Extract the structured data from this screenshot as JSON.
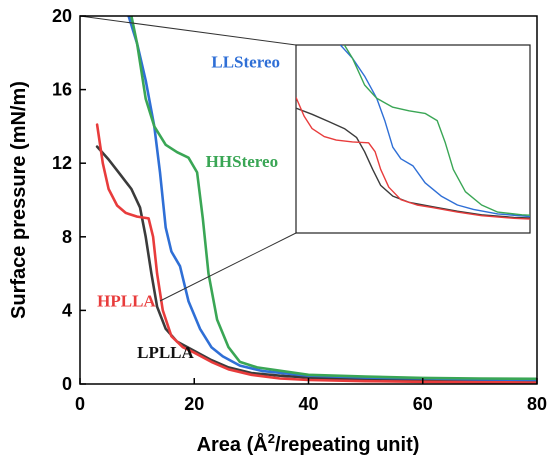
{
  "chart_data": {
    "type": "line",
    "title": "",
    "xlabel": "Area (Å²/repeating unit)",
    "xlabel_parts": {
      "prefix": "Area (Å",
      "sup": "2",
      "suffix": "/repeating unit)"
    },
    "ylabel": "Surface pressure (mN/m)",
    "xlim": [
      0,
      80
    ],
    "ylim": [
      0,
      20
    ],
    "x_ticks": [
      0,
      20,
      40,
      60,
      80
    ],
    "y_ticks": [
      0,
      4,
      8,
      12,
      16,
      20
    ],
    "grid": false,
    "series": [
      {
        "name": "LPLLA",
        "color": "#3b3b3b",
        "points": [
          [
            3,
            12.9
          ],
          [
            5,
            12.2
          ],
          [
            7,
            11.4
          ],
          [
            9,
            10.6
          ],
          [
            10.5,
            9.6
          ],
          [
            11.5,
            8.0
          ],
          [
            12.5,
            6.0
          ],
          [
            13.5,
            4.2
          ],
          [
            15,
            3.0
          ],
          [
            17,
            2.3
          ],
          [
            20,
            1.8
          ],
          [
            23,
            1.3
          ],
          [
            26,
            0.9
          ],
          [
            30,
            0.6
          ],
          [
            35,
            0.45
          ],
          [
            40,
            0.35
          ],
          [
            50,
            0.25
          ],
          [
            60,
            0.2
          ],
          [
            70,
            0.15
          ],
          [
            80,
            0.12
          ]
        ]
      },
      {
        "name": "HPLLA",
        "color": "#e83c3c",
        "points": [
          [
            3,
            14.1
          ],
          [
            4,
            12.0
          ],
          [
            5,
            10.6
          ],
          [
            6.5,
            9.7
          ],
          [
            8,
            9.3
          ],
          [
            10,
            9.1
          ],
          [
            12,
            9.0
          ],
          [
            12.8,
            8.0
          ],
          [
            13.5,
            6.0
          ],
          [
            14.5,
            4.0
          ],
          [
            16,
            2.6
          ],
          [
            18,
            2.0
          ],
          [
            20,
            1.7
          ],
          [
            23,
            1.2
          ],
          [
            26,
            0.8
          ],
          [
            30,
            0.5
          ],
          [
            35,
            0.3
          ],
          [
            40,
            0.22
          ],
          [
            50,
            0.15
          ],
          [
            60,
            0.12
          ],
          [
            70,
            0.1
          ],
          [
            80,
            0.08
          ]
        ]
      },
      {
        "name": "LLStereo",
        "color": "#2f6fd6",
        "points": [
          [
            8.5,
            20
          ],
          [
            10,
            18.5
          ],
          [
            11.5,
            16.5
          ],
          [
            13,
            14.0
          ],
          [
            14,
            11.5
          ],
          [
            15,
            8.5
          ],
          [
            16,
            7.2
          ],
          [
            17.5,
            6.4
          ],
          [
            19,
            4.5
          ],
          [
            21,
            3.0
          ],
          [
            23,
            2.0
          ],
          [
            25,
            1.5
          ],
          [
            28,
            1.0
          ],
          [
            32,
            0.7
          ],
          [
            40,
            0.45
          ],
          [
            50,
            0.35
          ],
          [
            60,
            0.3
          ],
          [
            70,
            0.25
          ],
          [
            80,
            0.22
          ]
        ]
      },
      {
        "name": "HHStereo",
        "color": "#3aa655",
        "points": [
          [
            9,
            20
          ],
          [
            10,
            18.5
          ],
          [
            11.5,
            15.5
          ],
          [
            13,
            14.0
          ],
          [
            15,
            13.0
          ],
          [
            17,
            12.6
          ],
          [
            19,
            12.3
          ],
          [
            20.5,
            11.5
          ],
          [
            21.5,
            9.0
          ],
          [
            22.5,
            6.0
          ],
          [
            24,
            3.5
          ],
          [
            26,
            2.0
          ],
          [
            28,
            1.2
          ],
          [
            31,
            0.9
          ],
          [
            40,
            0.5
          ],
          [
            50,
            0.4
          ],
          [
            60,
            0.33
          ],
          [
            70,
            0.3
          ],
          [
            80,
            0.28
          ]
        ]
      }
    ],
    "annotations": [
      {
        "text": "LLStereo",
        "series": "LLStereo",
        "x": 23,
        "y": 17.2
      },
      {
        "text": "HHStereo",
        "series": "HHStereo",
        "x": 22,
        "y": 11.8
      },
      {
        "text": "HPLLA",
        "series": "HPLLA",
        "x": 3,
        "y": 4.2
      },
      {
        "text": "LPLLA",
        "series": "LPLLA",
        "x": 10,
        "y": 1.4
      }
    ],
    "inset": {
      "xlim": [
        0,
        80
      ],
      "ylim": [
        0,
        20
      ]
    }
  }
}
